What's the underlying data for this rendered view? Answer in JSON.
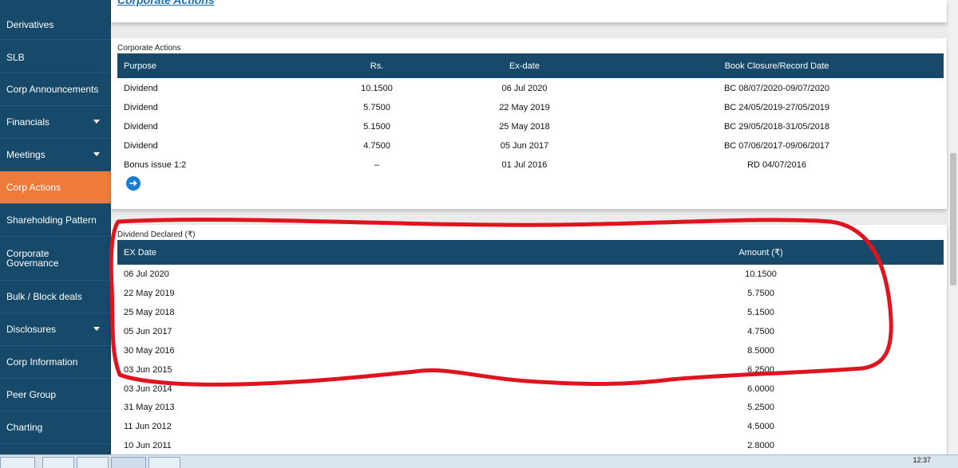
{
  "sidebar": {
    "items": [
      {
        "label": "Derivatives"
      },
      {
        "label": "SLB"
      },
      {
        "label": "Corp Announcements"
      },
      {
        "label": "Financials"
      },
      {
        "label": "Meetings"
      },
      {
        "label": "Corp Actions"
      },
      {
        "label": "Shareholding Pattern"
      },
      {
        "label": "Corporate"
      },
      {
        "label": "Bulk / Block deals"
      },
      {
        "label": "Disclosures"
      },
      {
        "label": "Corp Information"
      },
      {
        "label": "Peer Group"
      },
      {
        "label": "Charting"
      }
    ],
    "governance_label": "Governance",
    "active_index": 5,
    "active_color": "#ef7b3a",
    "bg_color": "#16496a"
  },
  "top_link": "Corporate Actions",
  "corporate_actions": {
    "title": "Corporate Actions",
    "headers": {
      "purpose": "Purpose",
      "rs": "Rs.",
      "exdate": "Ex-date",
      "book": "Book Closure/Record Date"
    },
    "rows": [
      {
        "purpose": "Dividend",
        "rs": "10.1500",
        "exdate": "06 Jul 2020",
        "book": "BC 08/07/2020-09/07/2020"
      },
      {
        "purpose": "Dividend",
        "rs": "5.7500",
        "exdate": "22 May 2019",
        "book": "BC 24/05/2019-27/05/2019"
      },
      {
        "purpose": "Dividend",
        "rs": "5.1500",
        "exdate": "25 May 2018",
        "book": "BC 29/05/2018-31/05/2018"
      },
      {
        "purpose": "Dividend",
        "rs": "4.7500",
        "exdate": "05 Jun 2017",
        "book": "BC 07/06/2017-09/06/2017"
      },
      {
        "purpose": "Bonus issue 1:2",
        "rs": "–",
        "exdate": "01 Jul 2016",
        "book": "RD 04/07/2016"
      }
    ],
    "more_icon": "arrow-right-circle-icon"
  },
  "dividend": {
    "title": "Dividend Declared (₹)",
    "headers": {
      "exdate": "EX Date",
      "amount": "Amount (₹)"
    },
    "rows": [
      {
        "exdate": "06 Jul 2020",
        "amount": "10.1500"
      },
      {
        "exdate": "22 May 2019",
        "amount": "5.7500"
      },
      {
        "exdate": "25 May 2018",
        "amount": "5.1500"
      },
      {
        "exdate": "05 Jun 2017",
        "amount": "4.7500"
      },
      {
        "exdate": "30 May 2016",
        "amount": "8.5000"
      },
      {
        "exdate": "03 Jun 2015",
        "amount": "6.2500"
      },
      {
        "exdate": "03 Jun 2014",
        "amount": "6.0000"
      },
      {
        "exdate": "31 May 2013",
        "amount": "5.2500"
      },
      {
        "exdate": "11 Jun 2012",
        "amount": "4.5000"
      },
      {
        "exdate": "10 Jun 2011",
        "amount": "2.8000"
      }
    ]
  },
  "taskbar": {
    "clock": "12:37"
  },
  "colors": {
    "header_bg": "#16496a",
    "annotation": "#e0141e",
    "link": "#1a6fb5"
  }
}
